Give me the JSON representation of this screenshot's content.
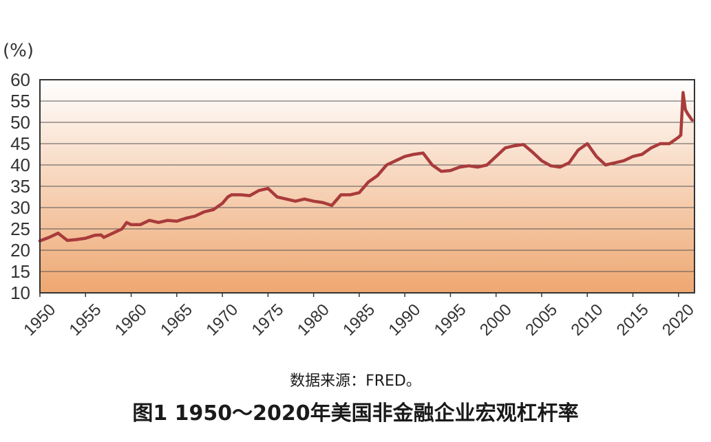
{
  "figure": {
    "source": "数据来源：FRED。",
    "title": "图1  1950～2020年美国非金融企业宏观杠杆率"
  },
  "colors": {
    "line": "#a93b3b",
    "gradient_top": "#ffffff",
    "gradient_bottom": "#eea771",
    "grid": "#555555",
    "frame": "#333333"
  },
  "chart_data": {
    "type": "line",
    "ylabel": "(%)",
    "xlabel": "",
    "ylim": [
      10,
      60
    ],
    "xlim": [
      1950,
      2021.75
    ],
    "yticks": [
      10,
      15,
      20,
      25,
      30,
      35,
      40,
      45,
      50,
      55,
      60
    ],
    "xticks": [
      1950,
      1955,
      1960,
      1965,
      1970,
      1975,
      1980,
      1985,
      1990,
      1995,
      2000,
      2005,
      2010,
      2015,
      2020
    ],
    "grid": true,
    "series": [
      {
        "x": [
          1950,
          1951,
          1952,
          1952.7,
          1953,
          1954,
          1955,
          1956,
          1956.7,
          1957,
          1958,
          1959,
          1959.5,
          1960,
          1961,
          1962,
          1963,
          1964,
          1965,
          1966,
          1967,
          1968,
          1969,
          1970,
          1970.6,
          1971,
          1972,
          1973,
          1974,
          1975,
          1976,
          1977,
          1978,
          1979,
          1980,
          1981,
          1982,
          1983,
          1984,
          1985,
          1986,
          1987,
          1988,
          1989,
          1990,
          1991,
          1992,
          1993,
          1994,
          1995,
          1996,
          1997,
          1998,
          1999,
          2000,
          2001,
          2002,
          2003,
          2004,
          2005,
          2006,
          2007,
          2008,
          2009,
          2010,
          2011,
          2012,
          2013,
          2014,
          2015,
          2016,
          2017,
          2018,
          2019,
          2020,
          2020.25,
          2020.5,
          2020.75,
          2021,
          2021.5
        ],
        "y": [
          22.2,
          23.0,
          24.0,
          22.8,
          22.3,
          22.5,
          22.8,
          23.5,
          23.6,
          23.0,
          24.0,
          25.0,
          26.5,
          26.0,
          26.0,
          27.0,
          26.5,
          27.0,
          26.8,
          27.5,
          28.0,
          29.0,
          29.5,
          31.0,
          32.5,
          33.0,
          33.0,
          32.8,
          34.0,
          34.5,
          32.5,
          32.0,
          31.5,
          32.0,
          31.5,
          31.2,
          30.5,
          33.0,
          33.0,
          33.5,
          36.0,
          37.5,
          40.0,
          41.0,
          42.0,
          42.5,
          42.8,
          40.0,
          38.5,
          38.7,
          39.5,
          39.8,
          39.5,
          40.0,
          42.0,
          44.0,
          44.5,
          44.8,
          43.0,
          41.0,
          39.8,
          39.5,
          40.5,
          43.5,
          45.0,
          42.0,
          40.0,
          40.5,
          41.0,
          42.0,
          42.5,
          44.0,
          45.0,
          45.0,
          46.5,
          47.0,
          57.0,
          53.0,
          52.0,
          50.5
        ]
      }
    ]
  }
}
